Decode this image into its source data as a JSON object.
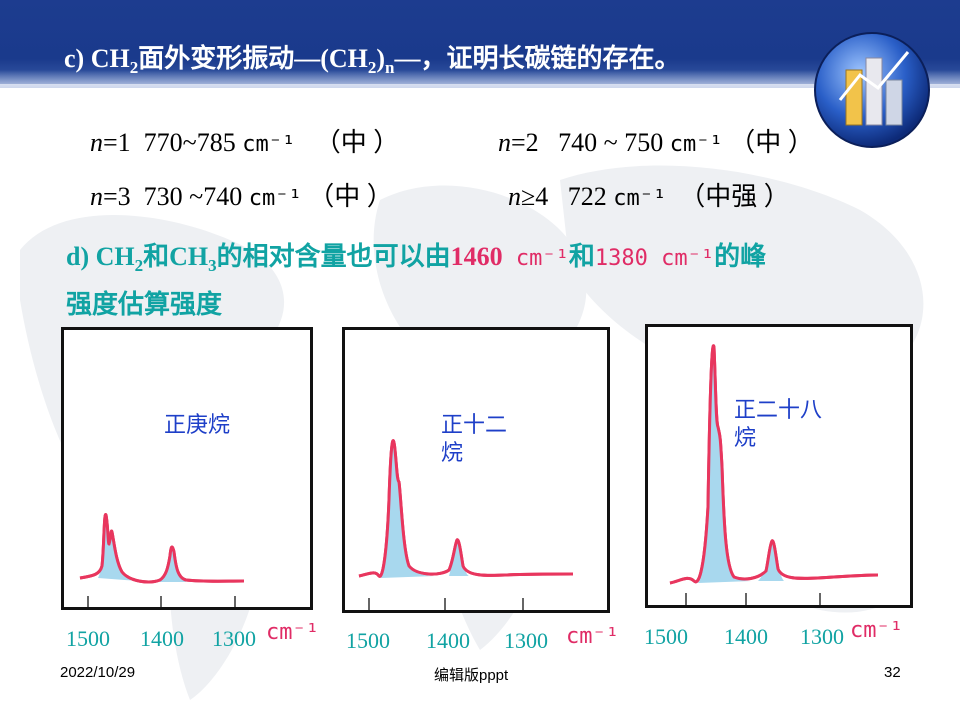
{
  "slide": {
    "title_parts": [
      "c) CH",
      "2",
      "面外变形振动—(CH",
      "2",
      ")",
      "n",
      "—，证明长碳链的存在。"
    ],
    "rows": [
      {
        "n_var": "n",
        "n_eq": "=1",
        "range": "770~785",
        "unit": "cm⁻¹",
        "intensity": "（中 ）"
      },
      {
        "n_var": "n",
        "n_eq": "=2",
        "range": "740 ~ 750",
        "unit": "cm⁻¹",
        "intensity": "（中 ）"
      },
      {
        "n_var": "n",
        "n_eq": "=3",
        "range": "730 ~740",
        "unit": "cm⁻¹",
        "intensity": "（中 ）"
      },
      {
        "n_var": "n",
        "n_eq": "≥4",
        "range": "722",
        "unit": "cm⁻¹",
        "intensity": "（中强 ）"
      }
    ],
    "point_d": {
      "prefix": "d) CH",
      "sub1": "2",
      "mid1": "和CH",
      "sub2": "3",
      "mid2": "的相对含量也可以由",
      "num1": "1460",
      "unit1": " cm⁻¹",
      "mid3": "和",
      "num2": "1380",
      "unit2": " cm⁻¹",
      "end": "的峰",
      "line2": "强度估算强度"
    }
  },
  "spectra": [
    {
      "label_lines": [
        "正庚烷"
      ],
      "axis_ticks": [
        "1500",
        "1400",
        "1300"
      ],
      "unit": "cm⁻¹"
    },
    {
      "label_lines": [
        "正十二",
        "烷"
      ],
      "axis_ticks": [
        "1500",
        "1400",
        "1300"
      ],
      "unit": "cm⁻¹"
    },
    {
      "label_lines": [
        "正二十八",
        "烷"
      ],
      "axis_ticks": [
        "1500",
        "1400",
        "1300"
      ],
      "unit": "cm⁻¹"
    }
  ],
  "footer": {
    "date": "2022/10/29",
    "center": "编辑版pppt",
    "page": "32"
  },
  "colors": {
    "header_blue": "#1a3a8c",
    "teal": "#11a3a3",
    "pink": "#e02c66",
    "label_blue": "#1e3fc8",
    "fill": "#a8d8ee"
  }
}
